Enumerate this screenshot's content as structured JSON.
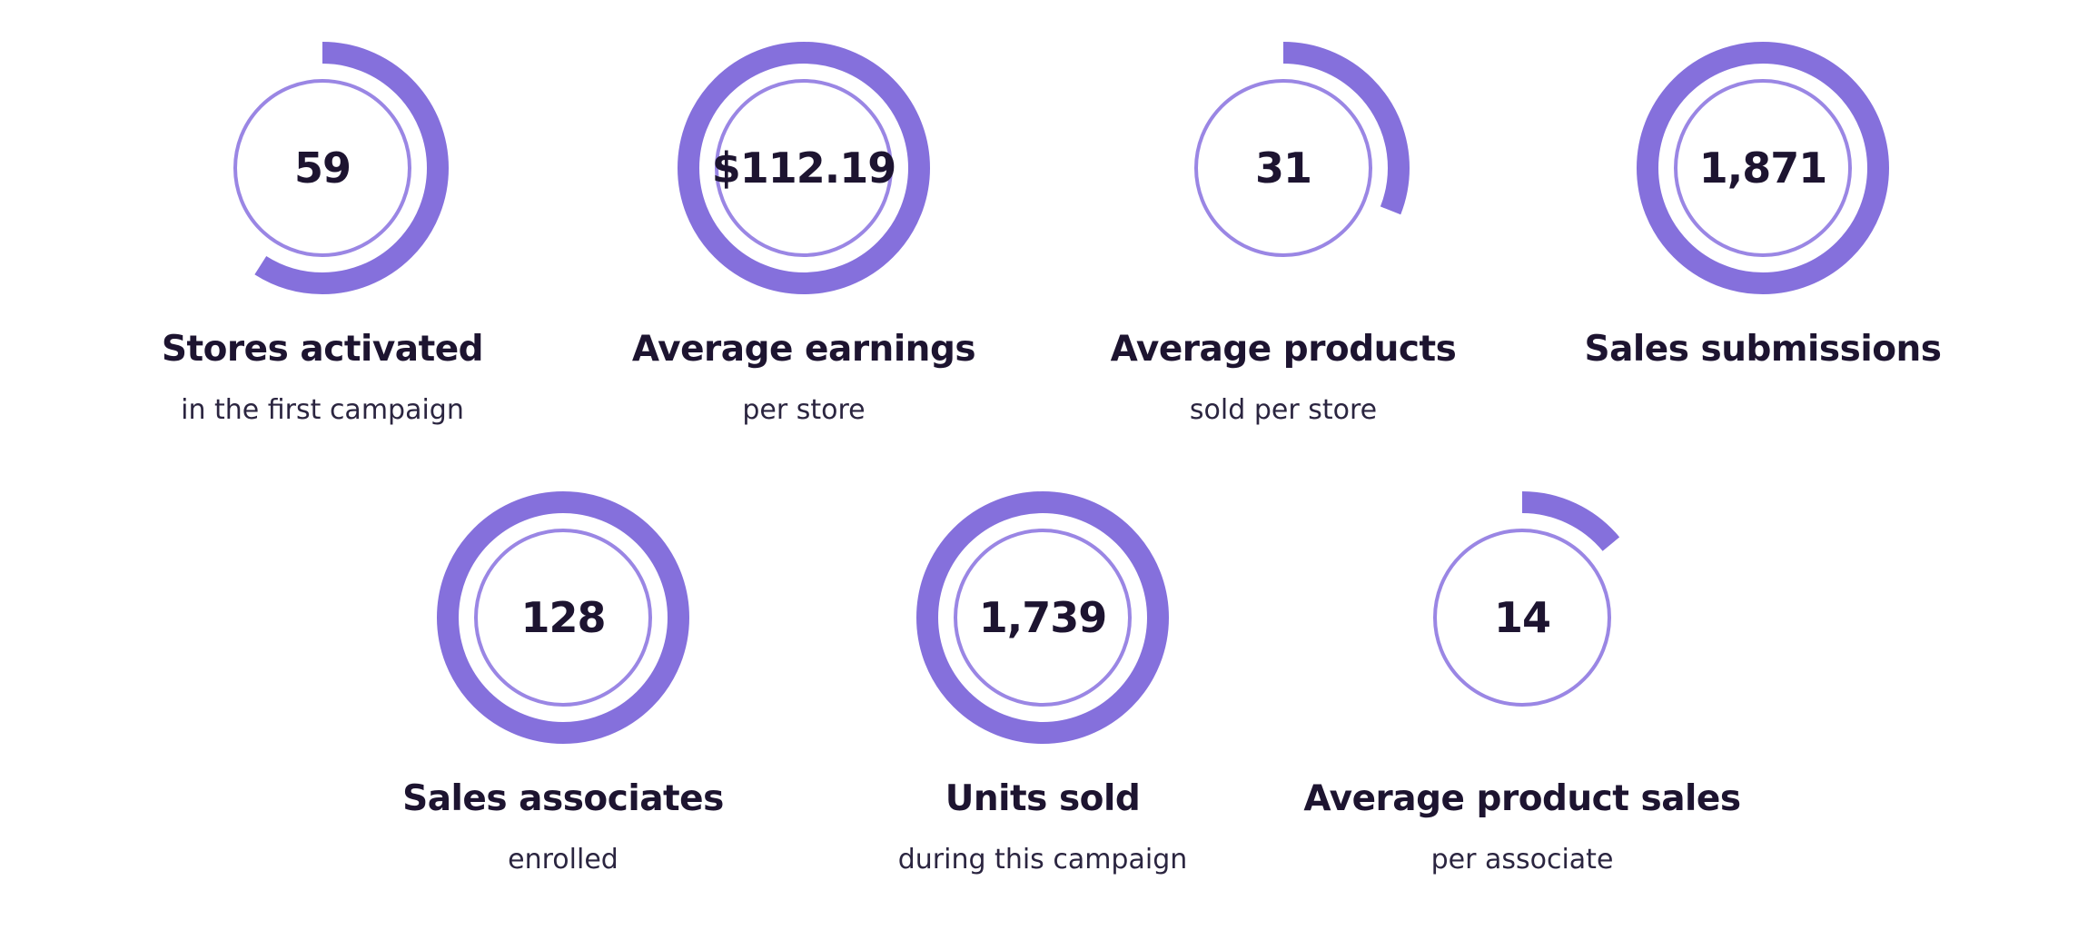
{
  "colors": {
    "accent": "#8570dc",
    "inner_ring": "#9a86e4",
    "text": "#1d1430",
    "subtext": "#2b2540"
  },
  "stats": [
    {
      "value": "59",
      "title": "Stores activated",
      "subtitle": "in the first campaign",
      "progress": 0.59
    },
    {
      "value": "$112.19",
      "title": "Average earnings",
      "subtitle": "per store",
      "progress": 1.0
    },
    {
      "value": "31",
      "title": "Average products",
      "subtitle": "sold per store",
      "progress": 0.31
    },
    {
      "value": "1,871",
      "title": "Sales submissions",
      "subtitle": "",
      "progress": 1.0
    },
    {
      "value": "128",
      "title": "Sales associates",
      "subtitle": "enrolled",
      "progress": 1.0
    },
    {
      "value": "1,739",
      "title": "Units sold",
      "subtitle": "during this campaign",
      "progress": 1.0
    },
    {
      "value": "14",
      "title": "Average product sales",
      "subtitle": "per associate",
      "progress": 0.14
    }
  ]
}
